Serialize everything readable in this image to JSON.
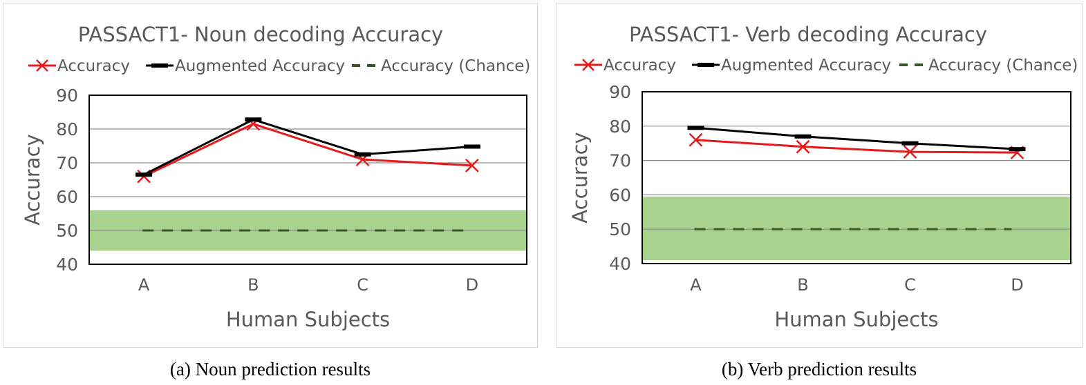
{
  "chart_data": [
    {
      "type": "line",
      "title": "PASSACT1- Noun decoding Accuracy",
      "xlabel": "Human Subjects",
      "ylabel": "Accuracy",
      "categories": [
        "A",
        "B",
        "C",
        "D"
      ],
      "ylim": [
        40,
        90
      ],
      "yticks": [
        40,
        50,
        60,
        70,
        80,
        90
      ],
      "grid": true,
      "legend_position": "top",
      "chance_band": [
        44,
        56
      ],
      "series": [
        {
          "name": "Accuracy",
          "values": [
            66,
            81.5,
            71,
            69.2
          ],
          "color": "#e41a1c",
          "marker": "x"
        },
        {
          "name": "Augmented Accuracy",
          "values": [
            66.5,
            82.8,
            72.5,
            74.8
          ],
          "color": "#000000",
          "marker": "dash"
        },
        {
          "name": "Accuracy (Chance)",
          "values": [
            50,
            50,
            50,
            50
          ],
          "color": "#375623",
          "style": "dashed"
        }
      ]
    },
    {
      "type": "line",
      "title": "PASSACT1- Verb decoding Accuracy",
      "xlabel": "Human Subjects",
      "ylabel": "Accuracy",
      "categories": [
        "A",
        "B",
        "C",
        "D"
      ],
      "ylim": [
        40,
        90
      ],
      "yticks": [
        40,
        50,
        60,
        70,
        80,
        90
      ],
      "grid": true,
      "legend_position": "top",
      "chance_band": [
        41,
        59.5
      ],
      "series": [
        {
          "name": "Accuracy",
          "values": [
            76,
            74,
            72.5,
            72.3
          ],
          "color": "#e41a1c",
          "marker": "x"
        },
        {
          "name": "Augmented Accuracy",
          "values": [
            79.5,
            77,
            75,
            73.3
          ],
          "color": "#000000",
          "marker": "dash"
        },
        {
          "name": "Accuracy (Chance)",
          "values": [
            50,
            50,
            50,
            50
          ],
          "color": "#375623",
          "style": "dashed"
        }
      ]
    }
  ],
  "captions": [
    "(a) Noun prediction results",
    "(b) Verb prediction results"
  ],
  "colors": {
    "band": "#a9d18e",
    "grid": "#8c8c8c",
    "axis": "#000000",
    "text": "#595959"
  }
}
